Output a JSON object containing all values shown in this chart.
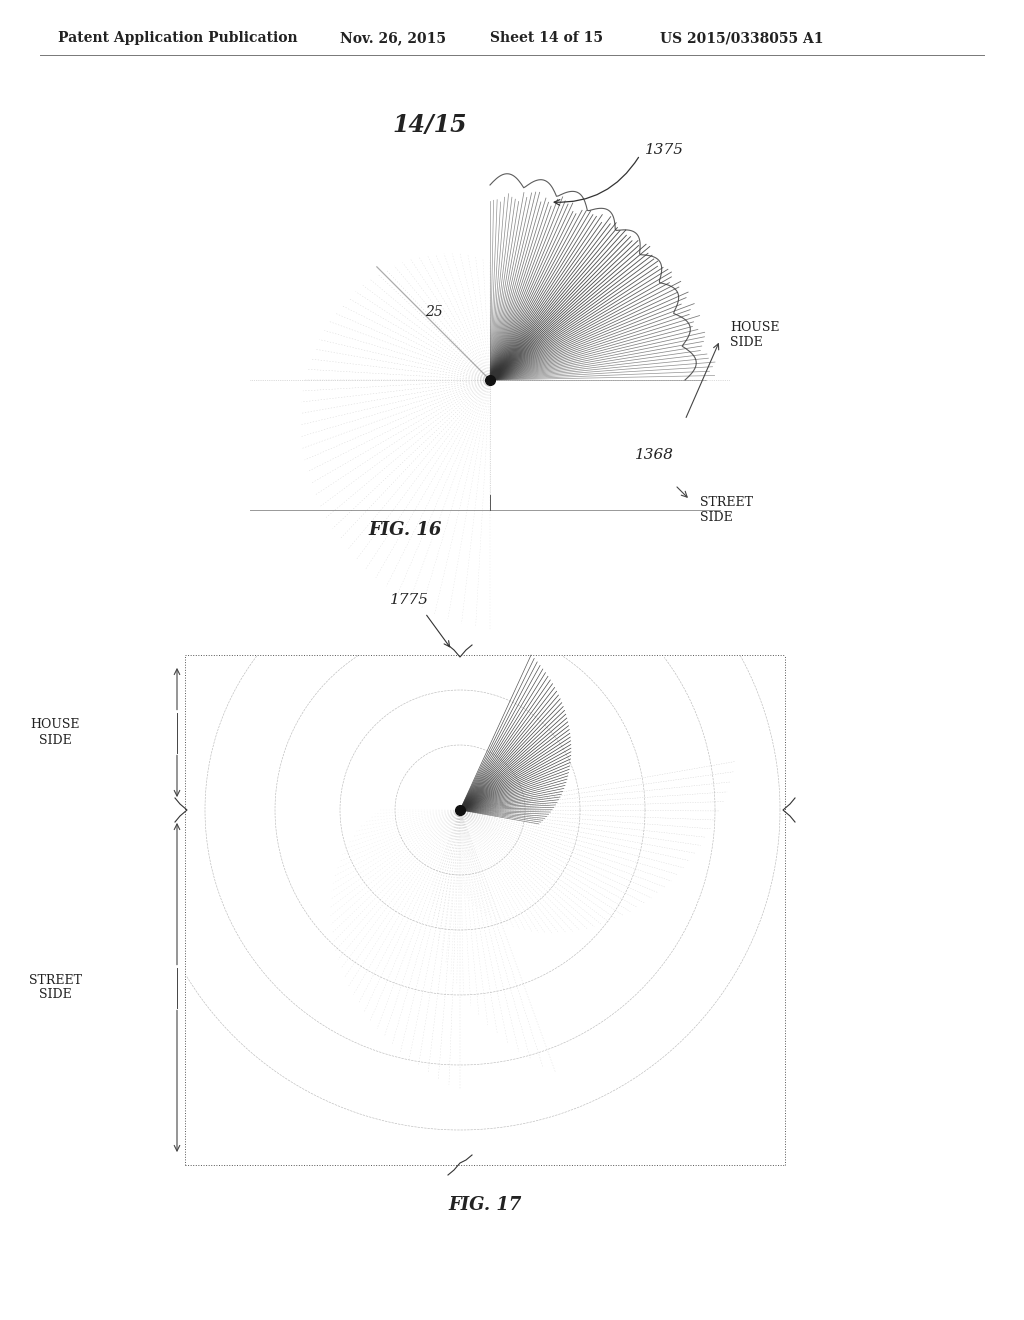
{
  "bg_color": "#ffffff",
  "header_text": "Patent Application Publication",
  "header_date": "Nov. 26, 2015",
  "header_sheet": "Sheet 14 of 15",
  "header_patent": "US 2015/0338055 A1",
  "sheet_label": "14/15",
  "fig16_label": "FIG. 16",
  "fig17_label": "FIG. 17",
  "label_1375": "1375",
  "label_25": "25",
  "label_1368": "1368",
  "label_house_side_16": "HOUSE\nSIDE",
  "label_street_side_16": "STREET\nSIDE",
  "label_1775": "1775",
  "label_house_side_17": "HOUSE\nSIDE",
  "label_street_side_17": "STREET\nSIDE",
  "line_color": "#555555",
  "text_color": "#222222"
}
